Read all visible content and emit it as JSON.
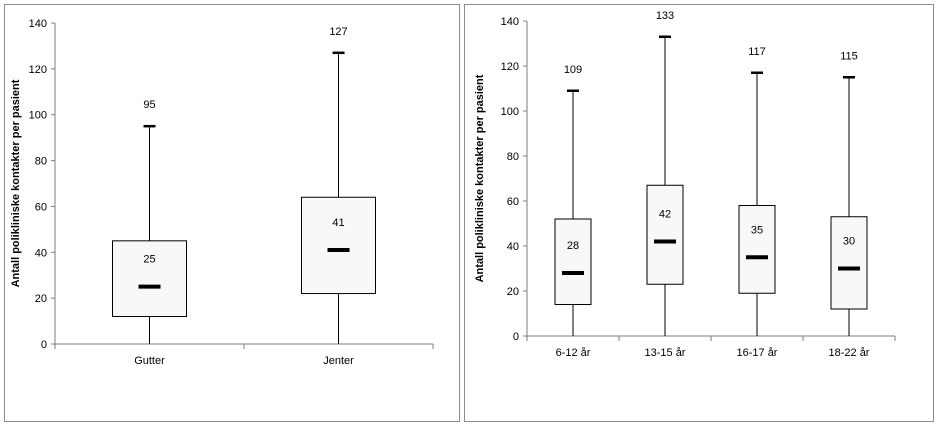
{
  "chart_data": [
    {
      "type": "box",
      "ylabel": "Antall polikliniske kontakter per pasient",
      "ylim": [
        0,
        140
      ],
      "yticks": [
        0,
        20,
        40,
        60,
        80,
        100,
        120,
        140
      ],
      "categories": [
        "Gutter",
        "Jenter"
      ],
      "boxes": [
        {
          "min": 0,
          "q1": 12,
          "median": 25,
          "q3": 45,
          "max": 95,
          "median_label": "25",
          "max_label": "95"
        },
        {
          "min": 0,
          "q1": 22,
          "median": 41,
          "q3": 64,
          "max": 127,
          "median_label": "41",
          "max_label": "127"
        }
      ]
    },
    {
      "type": "box",
      "ylabel": "Antall polikliniske kontakter per pasient",
      "ylim": [
        0,
        140
      ],
      "yticks": [
        0,
        20,
        40,
        60,
        80,
        100,
        120,
        140
      ],
      "categories": [
        "6-12 år",
        "13-15 år",
        "16-17 år",
        "18-22 år"
      ],
      "boxes": [
        {
          "min": 0,
          "q1": 14,
          "median": 28,
          "q3": 52,
          "max": 109,
          "median_label": "28",
          "max_label": "109"
        },
        {
          "min": 0,
          "q1": 23,
          "median": 42,
          "q3": 67,
          "max": 133,
          "median_label": "42",
          "max_label": "133"
        },
        {
          "min": 0,
          "q1": 19,
          "median": 35,
          "q3": 58,
          "max": 117,
          "median_label": "35",
          "max_label": "117"
        },
        {
          "min": 0,
          "q1": 12,
          "median": 30,
          "q3": 53,
          "max": 115,
          "median_label": "30",
          "max_label": "115"
        }
      ]
    }
  ]
}
